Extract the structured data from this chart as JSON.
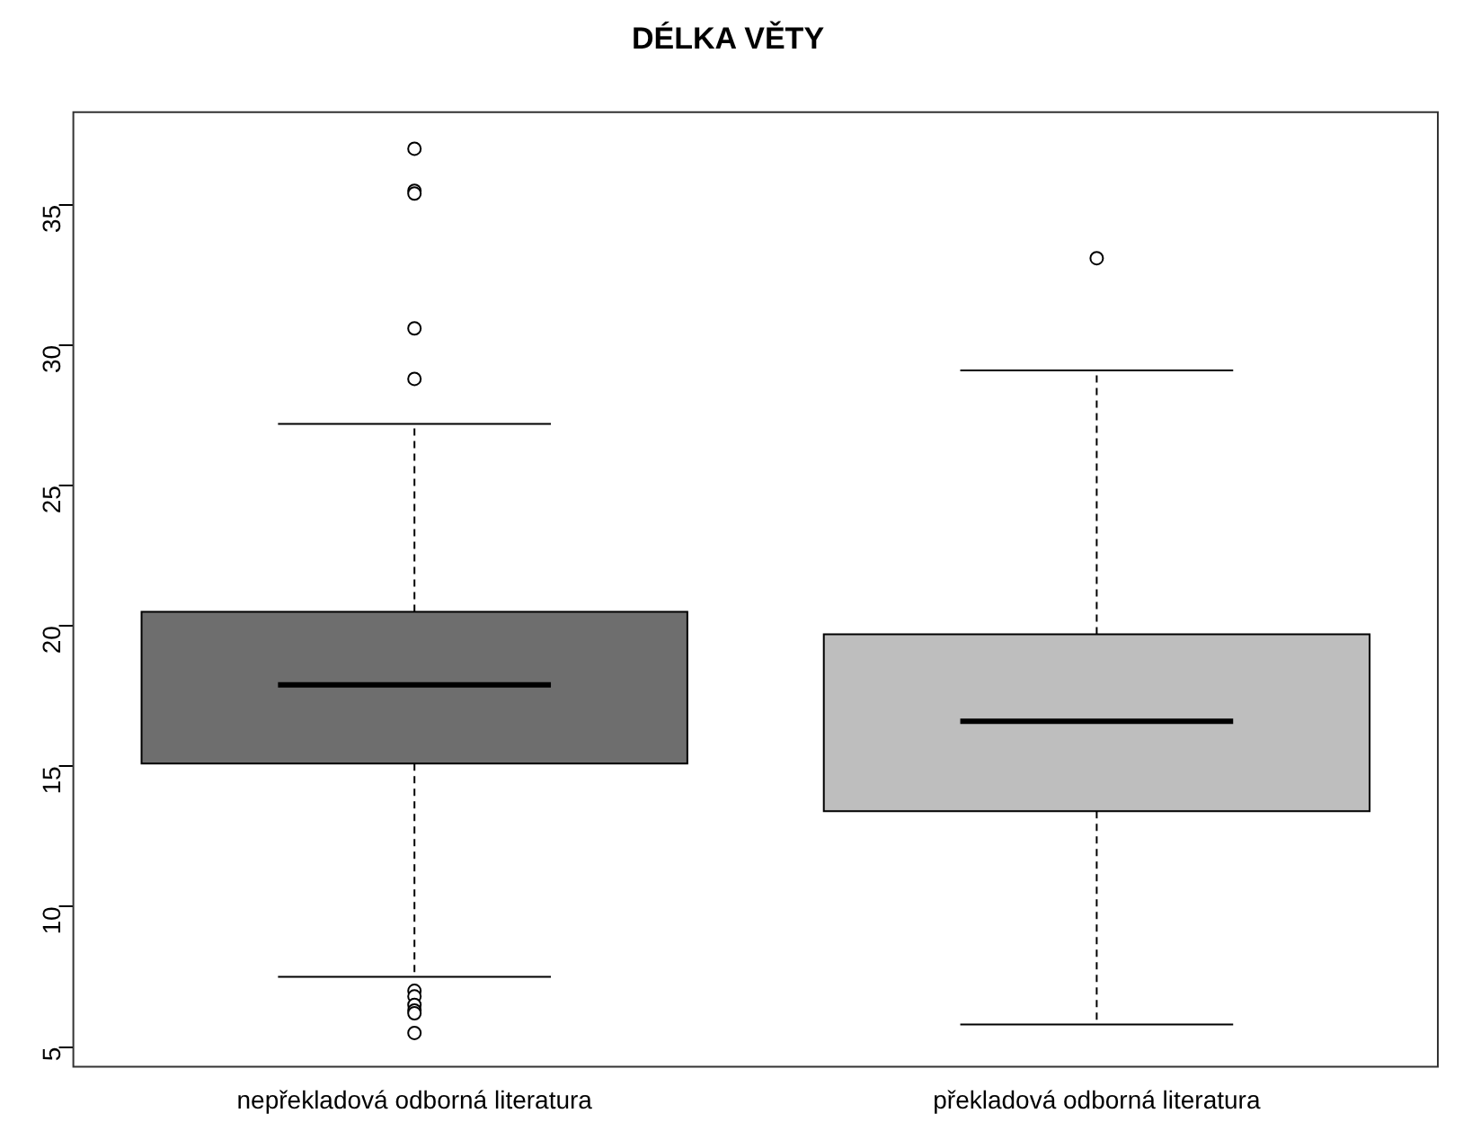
{
  "chart_data": {
    "type": "box",
    "title": "DÉLKA VĚTY",
    "categories": [
      "nepřekladová odborná literatura",
      "překladová odborná literatura"
    ],
    "series": [
      {
        "color": "#6e6e6e",
        "boxes": [
          {
            "low": 7.5,
            "q1": 15.1,
            "median": 17.9,
            "q3": 20.5,
            "high": 27.2,
            "outliers": [
              37.0,
              35.5,
              35.4,
              30.6,
              28.8,
              7.0,
              6.8,
              6.5,
              6.3,
              6.2,
              5.5
            ]
          },
          null
        ]
      },
      {
        "color": "#bebebe",
        "boxes": [
          null,
          {
            "low": 5.8,
            "q1": 13.4,
            "median": 16.6,
            "q3": 19.7,
            "high": 29.1,
            "outliers": [
              33.1
            ]
          }
        ]
      }
    ],
    "ylim": [
      4.3,
      38.3
    ],
    "yticks": [
      5,
      10,
      15,
      20,
      25,
      30,
      35
    ],
    "grid": false,
    "legend": false
  }
}
